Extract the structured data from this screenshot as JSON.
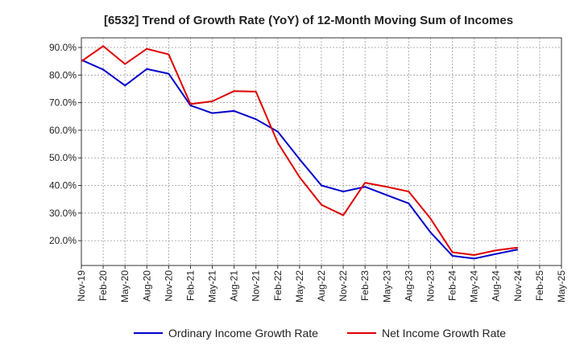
{
  "chart_data": {
    "type": "line",
    "title": "[6532]  Trend of Growth Rate (YoY) of 12-Month Moving Sum of Incomes",
    "xlabel": "",
    "ylabel": "",
    "x": [
      "Nov-19",
      "Feb-20",
      "May-20",
      "Aug-20",
      "Nov-20",
      "Feb-21",
      "May-21",
      "Aug-21",
      "Nov-21",
      "Feb-22",
      "May-22",
      "Aug-22",
      "Nov-22",
      "Feb-23",
      "May-23",
      "Aug-23",
      "Nov-23",
      "Feb-24",
      "May-24",
      "Aug-24",
      "Nov-24",
      "Feb-25",
      "May-25"
    ],
    "ylim": [
      11.0,
      93.5
    ],
    "yticks": [
      20,
      30,
      40,
      50,
      60,
      70,
      80,
      90
    ],
    "ytick_labels": [
      "20.0%",
      "30.0%",
      "40.0%",
      "50.0%",
      "60.0%",
      "70.0%",
      "80.0%",
      "90.0%"
    ],
    "grid": true,
    "legend_position": "bottom",
    "series": [
      {
        "name": "Ordinary Income Growth Rate",
        "color": "#0000cc",
        "values": [
          85.5,
          82.0,
          76.2,
          82.2,
          80.5,
          69.0,
          66.2,
          67.0,
          64.0,
          59.5,
          49.5,
          40.0,
          37.8,
          39.5,
          36.5,
          33.5,
          23.0,
          14.5,
          13.5,
          15.2,
          16.8,
          null,
          null
        ]
      },
      {
        "name": "Net Income Growth Rate",
        "color": "#e00000",
        "values": [
          85.0,
          90.5,
          84.0,
          89.5,
          87.5,
          69.5,
          70.5,
          74.2,
          74.0,
          55.5,
          43.0,
          33.0,
          29.2,
          41.0,
          39.5,
          37.8,
          28.0,
          15.8,
          14.8,
          16.5,
          17.5,
          null,
          null
        ]
      }
    ]
  }
}
